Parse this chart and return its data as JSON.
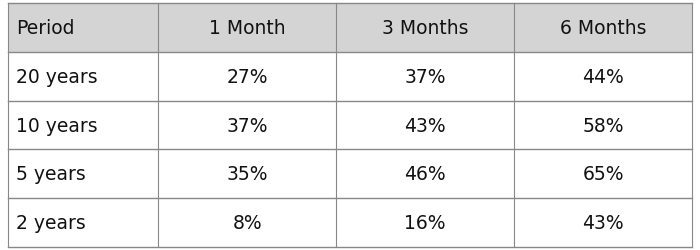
{
  "columns": [
    "Period",
    "1 Month",
    "3 Months",
    "6 Months"
  ],
  "rows": [
    [
      "20 years",
      "27%",
      "37%",
      "44%"
    ],
    [
      "10 years",
      "37%",
      "43%",
      "58%"
    ],
    [
      "5 years",
      "35%",
      "46%",
      "65%"
    ],
    [
      "2 years",
      "8%",
      "16%",
      "43%"
    ]
  ],
  "header_bg": "#d4d4d4",
  "row_bg": "#ffffff",
  "grid_color": "#888888",
  "text_color": "#111111",
  "header_fontsize": 13.5,
  "cell_fontsize": 13.5,
  "figsize": [
    7.0,
    2.51
  ],
  "dpi": 100
}
